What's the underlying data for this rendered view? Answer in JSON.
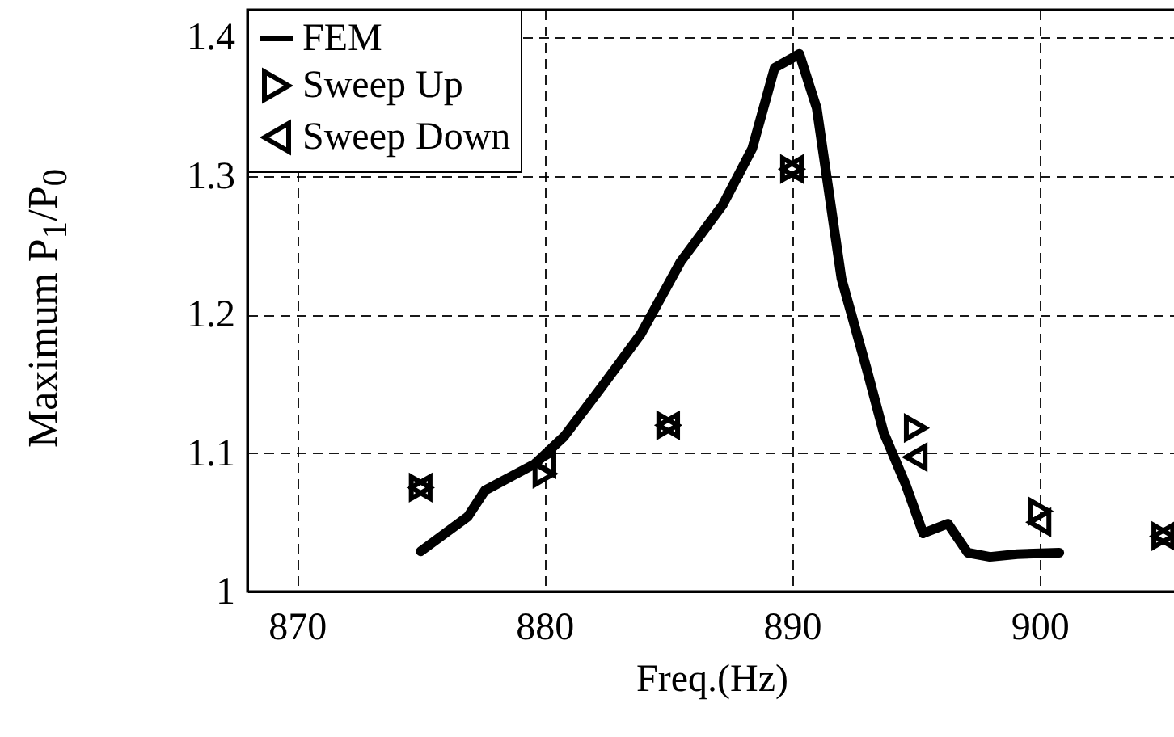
{
  "chart_data": {
    "type": "line",
    "xlabel": "Freq.(Hz)",
    "ylabel": "Maximum P$_{1}$/P$_{0}$",
    "xlim": [
      868,
      905.5
    ],
    "xticks": [
      870,
      880,
      890,
      900
    ],
    "ylim": [
      1,
      1.42
    ],
    "yticks": [
      1,
      1.1,
      1.2,
      1.3,
      1.4
    ],
    "grid": true,
    "legend": "top left",
    "series": [
      {
        "name": "FEM",
        "color": "#000000",
        "line_style": "solid",
        "x": [
          875.0,
          876.9,
          877.6,
          879.6,
          880.8,
          882.2,
          883.9,
          885.5,
          887.2,
          888.4,
          889.3,
          890.0,
          890.3,
          891.0,
          892.0,
          893.0,
          893.7,
          894.6,
          895.3,
          896.3,
          897.1,
          898.0,
          899.1,
          900.8
        ],
        "values": [
          1.029,
          1.054,
          1.073,
          1.092,
          1.112,
          1.145,
          1.186,
          1.238,
          1.279,
          1.32,
          1.378,
          1.385,
          1.388,
          1.349,
          1.226,
          1.162,
          1.115,
          1.077,
          1.042,
          1.049,
          1.028,
          1.025,
          1.027,
          1.028
        ]
      },
      {
        "name": "Sweep Up",
        "type": "scatter",
        "color": "#000000",
        "marker": "triangle-right",
        "x": [
          875,
          880,
          885,
          890,
          895,
          900,
          905
        ],
        "values": [
          1.075,
          1.085,
          1.12,
          1.305,
          1.118,
          1.058,
          1.04
        ]
      },
      {
        "name": "Sweep Down",
        "type": "scatter",
        "color": "#000000",
        "marker": "triangle-left",
        "x": [
          875,
          880,
          885,
          890,
          895,
          900,
          905
        ],
        "values": [
          1.075,
          1.092,
          1.12,
          1.305,
          1.097,
          1.05,
          1.04
        ]
      }
    ]
  }
}
